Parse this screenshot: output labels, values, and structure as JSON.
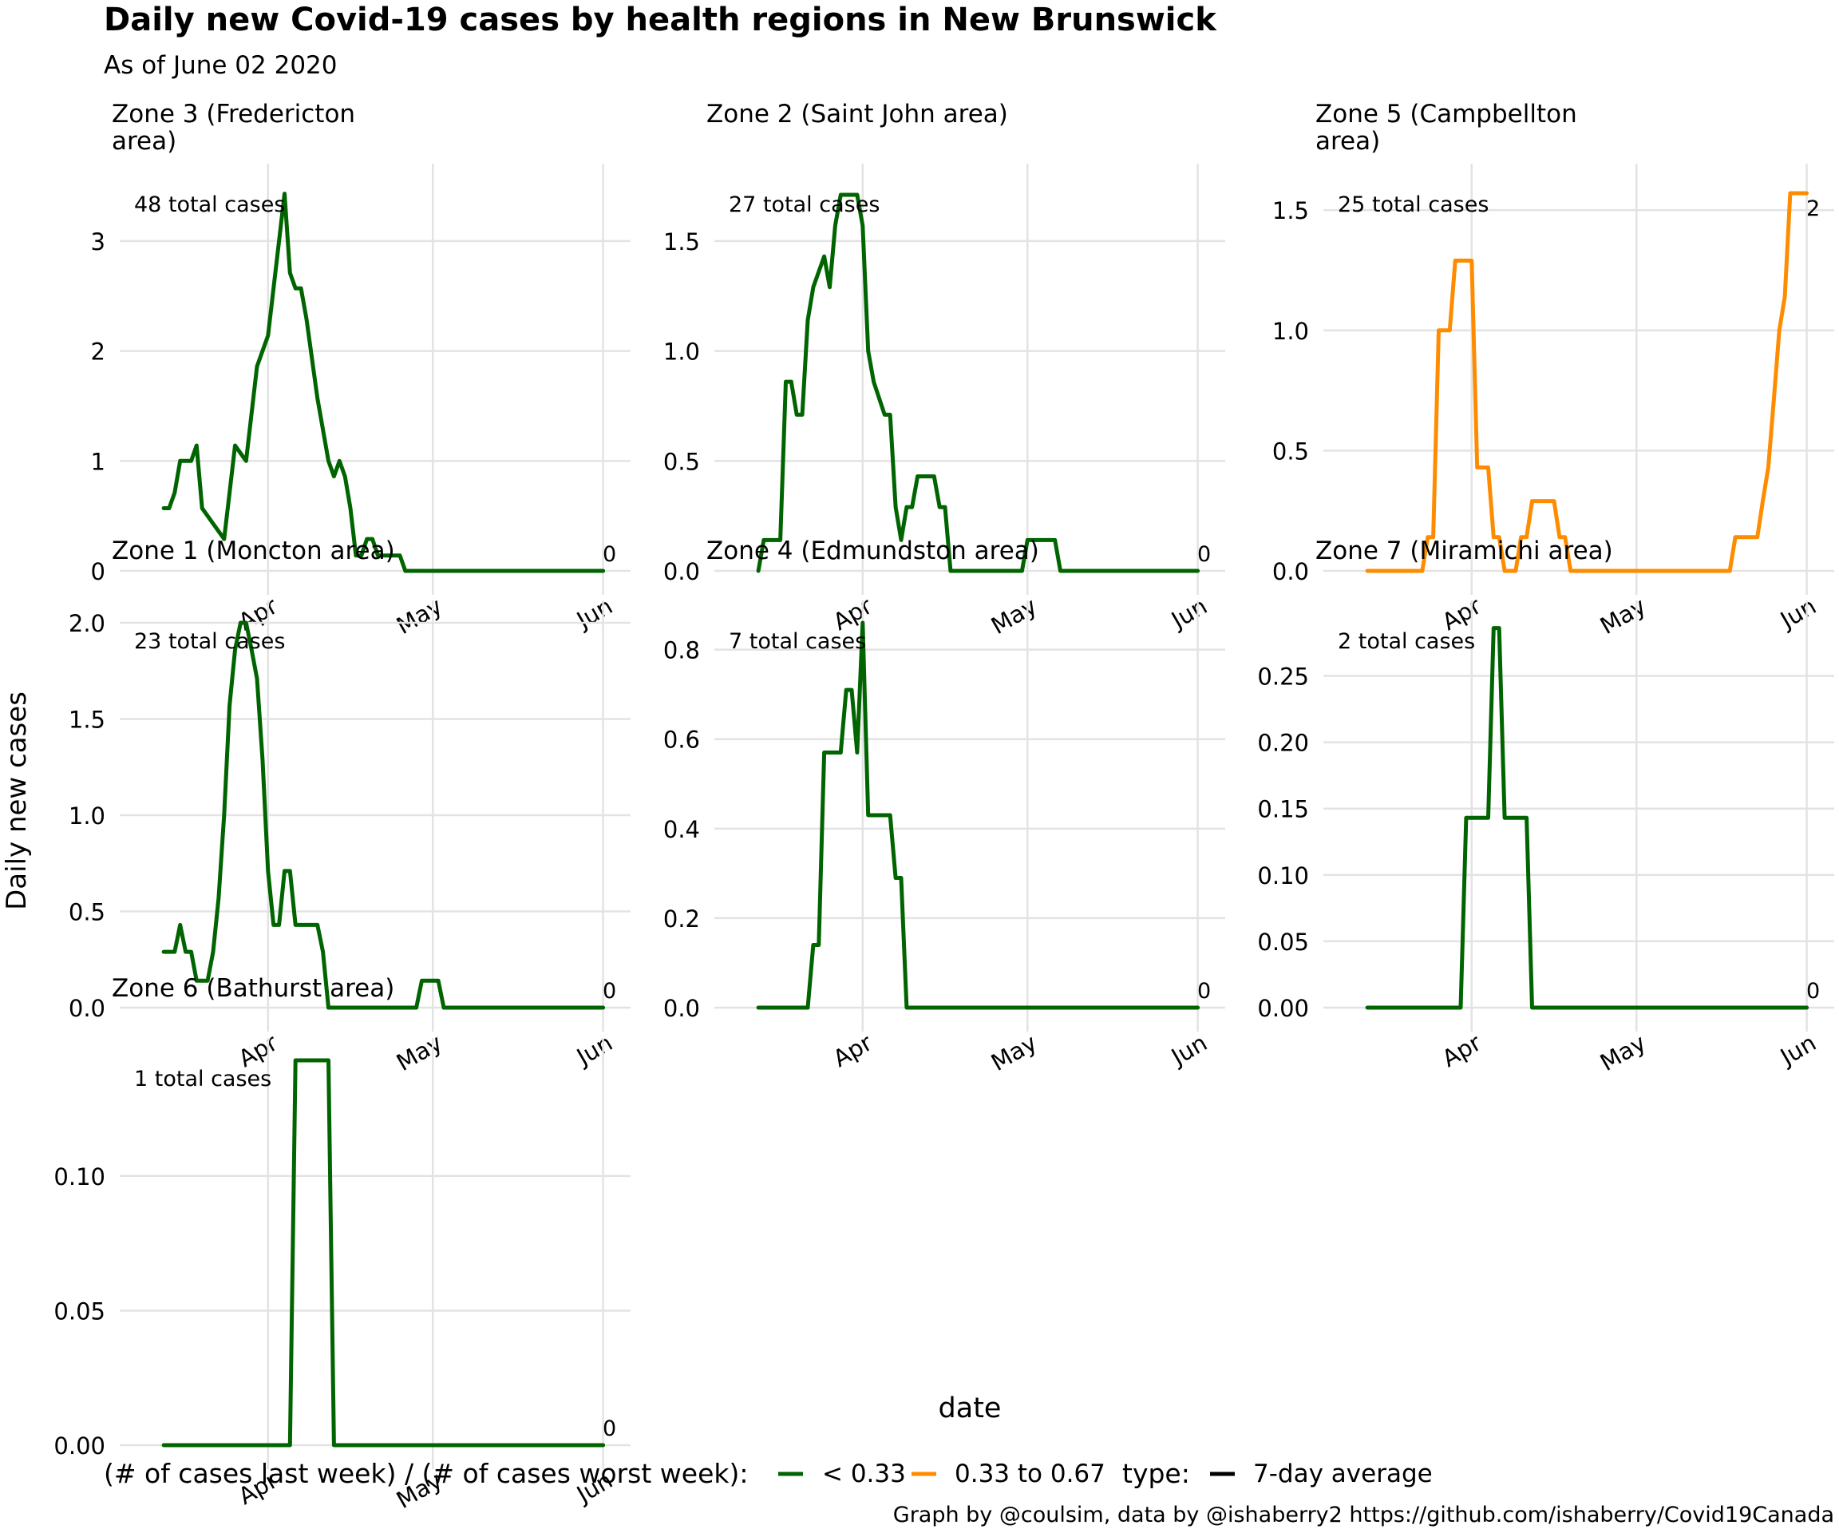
{
  "header": {
    "title": "Daily new Covid-19 cases by health regions in New Brunswick",
    "subtitle": "As of June 02 2020"
  },
  "axes": {
    "xlabel": "date",
    "ylabel": "Daily new cases",
    "x_tick_labels": [
      "Apr",
      "May",
      "Jun"
    ],
    "x_tick_dates": [
      "2020-04-01",
      "2020-05-01",
      "2020-06-01"
    ],
    "xlim": [
      "2020-03-05",
      "2020-06-06"
    ]
  },
  "legend": {
    "ratio_title": "(# of cases last week) / (# of cases worst week):",
    "ratio_items": [
      {
        "label": "< 0.33",
        "color": "#006400"
      },
      {
        "label": "0.33 to 0.67",
        "color": "#FF8C00"
      }
    ],
    "type_title": "type:",
    "type_items": [
      {
        "label": "7-day average",
        "color": "#000000"
      }
    ],
    "placement": "bottom"
  },
  "caption": "Graph by @coulsim, data by @ishaberry2 https://github.com/ishaberry/Covid19Canada",
  "chart_data": [
    {
      "type": "line",
      "title": "Zone 3 (Fredericton area)",
      "title_lines": [
        "Zone 3 (Fredericton",
        "area)"
      ],
      "total_label": "48 total cases",
      "end_label": "0",
      "color": "#006400",
      "ylim": [
        0,
        3.5
      ],
      "yticks": [
        0,
        1,
        2,
        3
      ],
      "ytick_labels": [
        "0",
        "1",
        "2",
        "3"
      ],
      "grid": true,
      "x": [
        "2020-03-13",
        "2020-03-14",
        "2020-03-15",
        "2020-03-16",
        "2020-03-18",
        "2020-03-19",
        "2020-03-20",
        "2020-03-22",
        "2020-03-24",
        "2020-03-25",
        "2020-03-26",
        "2020-03-28",
        "2020-03-30",
        "2020-04-01",
        "2020-04-02",
        "2020-04-03",
        "2020-04-04",
        "2020-04-05",
        "2020-04-06",
        "2020-04-07",
        "2020-04-08",
        "2020-04-10",
        "2020-04-12",
        "2020-04-13",
        "2020-04-14",
        "2020-04-15",
        "2020-04-16",
        "2020-04-17",
        "2020-04-18",
        "2020-04-19",
        "2020-04-20",
        "2020-04-21",
        "2020-04-22",
        "2020-04-23",
        "2020-04-24",
        "2020-04-25",
        "2020-04-26",
        "2020-04-27",
        "2020-06-01"
      ],
      "values": [
        0.57,
        0.57,
        0.71,
        1.0,
        1.0,
        1.14,
        0.57,
        0.43,
        0.29,
        0.71,
        1.14,
        1.0,
        1.86,
        2.14,
        2.57,
        3.0,
        3.43,
        2.71,
        2.57,
        2.57,
        2.29,
        1.57,
        1.0,
        0.86,
        1.0,
        0.86,
        0.57,
        0.14,
        0.14,
        0.29,
        0.29,
        0.14,
        0.14,
        0.14,
        0.14,
        0.14,
        0.0,
        0.0,
        0.0
      ]
    },
    {
      "type": "line",
      "title": "Zone 2 (Saint John area)",
      "title_lines": [
        "Zone 2 (Saint John area)"
      ],
      "total_label": "27 total cases",
      "end_label": "0",
      "color": "#006400",
      "ylim": [
        0,
        1.75
      ],
      "yticks": [
        0,
        0.5,
        1.0,
        1.5
      ],
      "ytick_labels": [
        "0.0",
        "0.5",
        "1.0",
        "1.5"
      ],
      "grid": true,
      "x": [
        "2020-03-13",
        "2020-03-14",
        "2020-03-17",
        "2020-03-18",
        "2020-03-19",
        "2020-03-20",
        "2020-03-21",
        "2020-03-22",
        "2020-03-23",
        "2020-03-25",
        "2020-03-26",
        "2020-03-27",
        "2020-03-28",
        "2020-03-29",
        "2020-03-30",
        "2020-03-31",
        "2020-04-01",
        "2020-04-02",
        "2020-04-03",
        "2020-04-05",
        "2020-04-06",
        "2020-04-07",
        "2020-04-08",
        "2020-04-09",
        "2020-04-10",
        "2020-04-11",
        "2020-04-12",
        "2020-04-14",
        "2020-04-15",
        "2020-04-16",
        "2020-04-17",
        "2020-04-18",
        "2020-04-30",
        "2020-05-01",
        "2020-05-06",
        "2020-05-07",
        "2020-06-01"
      ],
      "values": [
        0.0,
        0.14,
        0.14,
        0.86,
        0.86,
        0.71,
        0.71,
        1.14,
        1.29,
        1.43,
        1.29,
        1.57,
        1.71,
        1.71,
        1.71,
        1.71,
        1.57,
        1.0,
        0.86,
        0.71,
        0.71,
        0.29,
        0.14,
        0.29,
        0.29,
        0.43,
        0.43,
        0.43,
        0.29,
        0.29,
        0.0,
        0.0,
        0.0,
        0.14,
        0.14,
        0.0,
        0.0
      ]
    },
    {
      "type": "line",
      "title": "Zone 5 (Campbellton area)",
      "title_lines": [
        "Zone 5 (Campbellton",
        "area)"
      ],
      "total_label": "25 total cases",
      "end_label": "2",
      "color": "#FF8C00",
      "ylim": [
        0,
        1.6
      ],
      "yticks": [
        0,
        0.5,
        1.0,
        1.5
      ],
      "ytick_labels": [
        "0.0",
        "0.5",
        "1.0",
        "1.5"
      ],
      "grid": true,
      "x": [
        "2020-03-13",
        "2020-03-23",
        "2020-03-24",
        "2020-03-25",
        "2020-03-26",
        "2020-03-27",
        "2020-03-28",
        "2020-03-29",
        "2020-03-31",
        "2020-04-01",
        "2020-04-02",
        "2020-04-03",
        "2020-04-04",
        "2020-04-05",
        "2020-04-06",
        "2020-04-07",
        "2020-04-08",
        "2020-04-09",
        "2020-04-10",
        "2020-04-11",
        "2020-04-12",
        "2020-04-13",
        "2020-04-14",
        "2020-04-16",
        "2020-04-17",
        "2020-04-18",
        "2020-04-19",
        "2020-05-18",
        "2020-05-19",
        "2020-05-20",
        "2020-05-23",
        "2020-05-24",
        "2020-05-25",
        "2020-05-26",
        "2020-05-27",
        "2020-05-28",
        "2020-05-29",
        "2020-05-30",
        "2020-05-31",
        "2020-06-01"
      ],
      "values": [
        0.0,
        0.0,
        0.14,
        0.14,
        1.0,
        1.0,
        1.0,
        1.29,
        1.29,
        1.29,
        0.43,
        0.43,
        0.43,
        0.14,
        0.14,
        0.0,
        0.0,
        0.0,
        0.14,
        0.14,
        0.29,
        0.29,
        0.29,
        0.29,
        0.14,
        0.14,
        0.0,
        0.0,
        0.14,
        0.14,
        0.14,
        0.29,
        0.43,
        0.71,
        1.0,
        1.14,
        1.57,
        1.57,
        1.57,
        1.57
      ]
    },
    {
      "type": "line",
      "title": "Zone 1 (Moncton area)",
      "title_lines": [
        "Zone 1 (Moncton area)"
      ],
      "total_label": "23 total cases",
      "end_label": "0",
      "color": "#006400",
      "ylim": [
        0,
        2.0
      ],
      "yticks": [
        0,
        0.5,
        1.0,
        1.5,
        2.0
      ],
      "ytick_labels": [
        "0.0",
        "0.5",
        "1.0",
        "1.5",
        "2.0"
      ],
      "grid": true,
      "x": [
        "2020-03-13",
        "2020-03-15",
        "2020-03-16",
        "2020-03-17",
        "2020-03-18",
        "2020-03-19",
        "2020-03-21",
        "2020-03-22",
        "2020-03-23",
        "2020-03-24",
        "2020-03-25",
        "2020-03-26",
        "2020-03-27",
        "2020-03-28",
        "2020-03-29",
        "2020-03-30",
        "2020-03-31",
        "2020-04-01",
        "2020-04-02",
        "2020-04-03",
        "2020-04-04",
        "2020-04-05",
        "2020-04-06",
        "2020-04-07",
        "2020-04-08",
        "2020-04-10",
        "2020-04-11",
        "2020-04-12",
        "2020-04-13",
        "2020-04-14",
        "2020-04-28",
        "2020-04-29",
        "2020-05-02",
        "2020-05-03",
        "2020-05-04",
        "2020-06-01"
      ],
      "values": [
        0.29,
        0.29,
        0.43,
        0.29,
        0.29,
        0.14,
        0.14,
        0.29,
        0.57,
        1.0,
        1.57,
        1.86,
        2.0,
        2.0,
        1.86,
        1.71,
        1.29,
        0.71,
        0.43,
        0.43,
        0.71,
        0.71,
        0.43,
        0.43,
        0.43,
        0.43,
        0.29,
        0.0,
        0.0,
        0.0,
        0.0,
        0.14,
        0.14,
        0.0,
        0.0,
        0.0
      ]
    },
    {
      "type": "line",
      "title": "Zone 4 (Edmundston area)",
      "title_lines": [
        "Zone 4 (Edmundston area)"
      ],
      "total_label": "7 total cases",
      "end_label": "0",
      "color": "#006400",
      "ylim": [
        0,
        0.86
      ],
      "yticks": [
        0,
        0.2,
        0.4,
        0.6,
        0.8
      ],
      "ytick_labels": [
        "0.0",
        "0.2",
        "0.4",
        "0.6",
        "0.8"
      ],
      "grid": true,
      "x": [
        "2020-03-13",
        "2020-03-22",
        "2020-03-23",
        "2020-03-24",
        "2020-03-25",
        "2020-03-28",
        "2020-03-29",
        "2020-03-30",
        "2020-03-31",
        "2020-04-01",
        "2020-04-02",
        "2020-04-03",
        "2020-04-05",
        "2020-04-06",
        "2020-04-07",
        "2020-04-08",
        "2020-04-09",
        "2020-04-10",
        "2020-06-01"
      ],
      "values": [
        0.0,
        0.0,
        0.14,
        0.14,
        0.57,
        0.57,
        0.71,
        0.71,
        0.57,
        0.86,
        0.43,
        0.43,
        0.43,
        0.43,
        0.29,
        0.29,
        0.0,
        0.0,
        0.0
      ]
    },
    {
      "type": "line",
      "title": "Zone 7 (Miramichi area)",
      "title_lines": [
        "Zone 7 (Miramichi area)"
      ],
      "total_label": "2 total cases",
      "end_label": "0",
      "color": "#006400",
      "ylim": [
        0,
        0.29
      ],
      "yticks": [
        0,
        0.05,
        0.1,
        0.15,
        0.2,
        0.25
      ],
      "ytick_labels": [
        "0.00",
        "0.05",
        "0.10",
        "0.15",
        "0.20",
        "0.25"
      ],
      "grid": true,
      "x": [
        "2020-03-13",
        "2020-03-30",
        "2020-03-31",
        "2020-04-04",
        "2020-04-05",
        "2020-04-06",
        "2020-04-07",
        "2020-04-11",
        "2020-04-12",
        "2020-06-01"
      ],
      "values": [
        0.0,
        0.0,
        0.143,
        0.143,
        0.286,
        0.286,
        0.143,
        0.143,
        0.0,
        0.0
      ]
    },
    {
      "type": "line",
      "title": "Zone 6 (Bathurst area)",
      "title_lines": [
        "Zone 6 (Bathurst area)"
      ],
      "total_label": "1 total cases",
      "end_label": "0",
      "color": "#006400",
      "ylim": [
        0,
        0.143
      ],
      "yticks": [
        0,
        0.05,
        0.1
      ],
      "ytick_labels": [
        "0.00",
        "0.05",
        "0.10"
      ],
      "grid": true,
      "x": [
        "2020-03-13",
        "2020-04-05",
        "2020-04-06",
        "2020-04-12",
        "2020-04-13",
        "2020-06-01"
      ],
      "values": [
        0.0,
        0.0,
        0.143,
        0.143,
        0.0,
        0.0
      ]
    }
  ]
}
